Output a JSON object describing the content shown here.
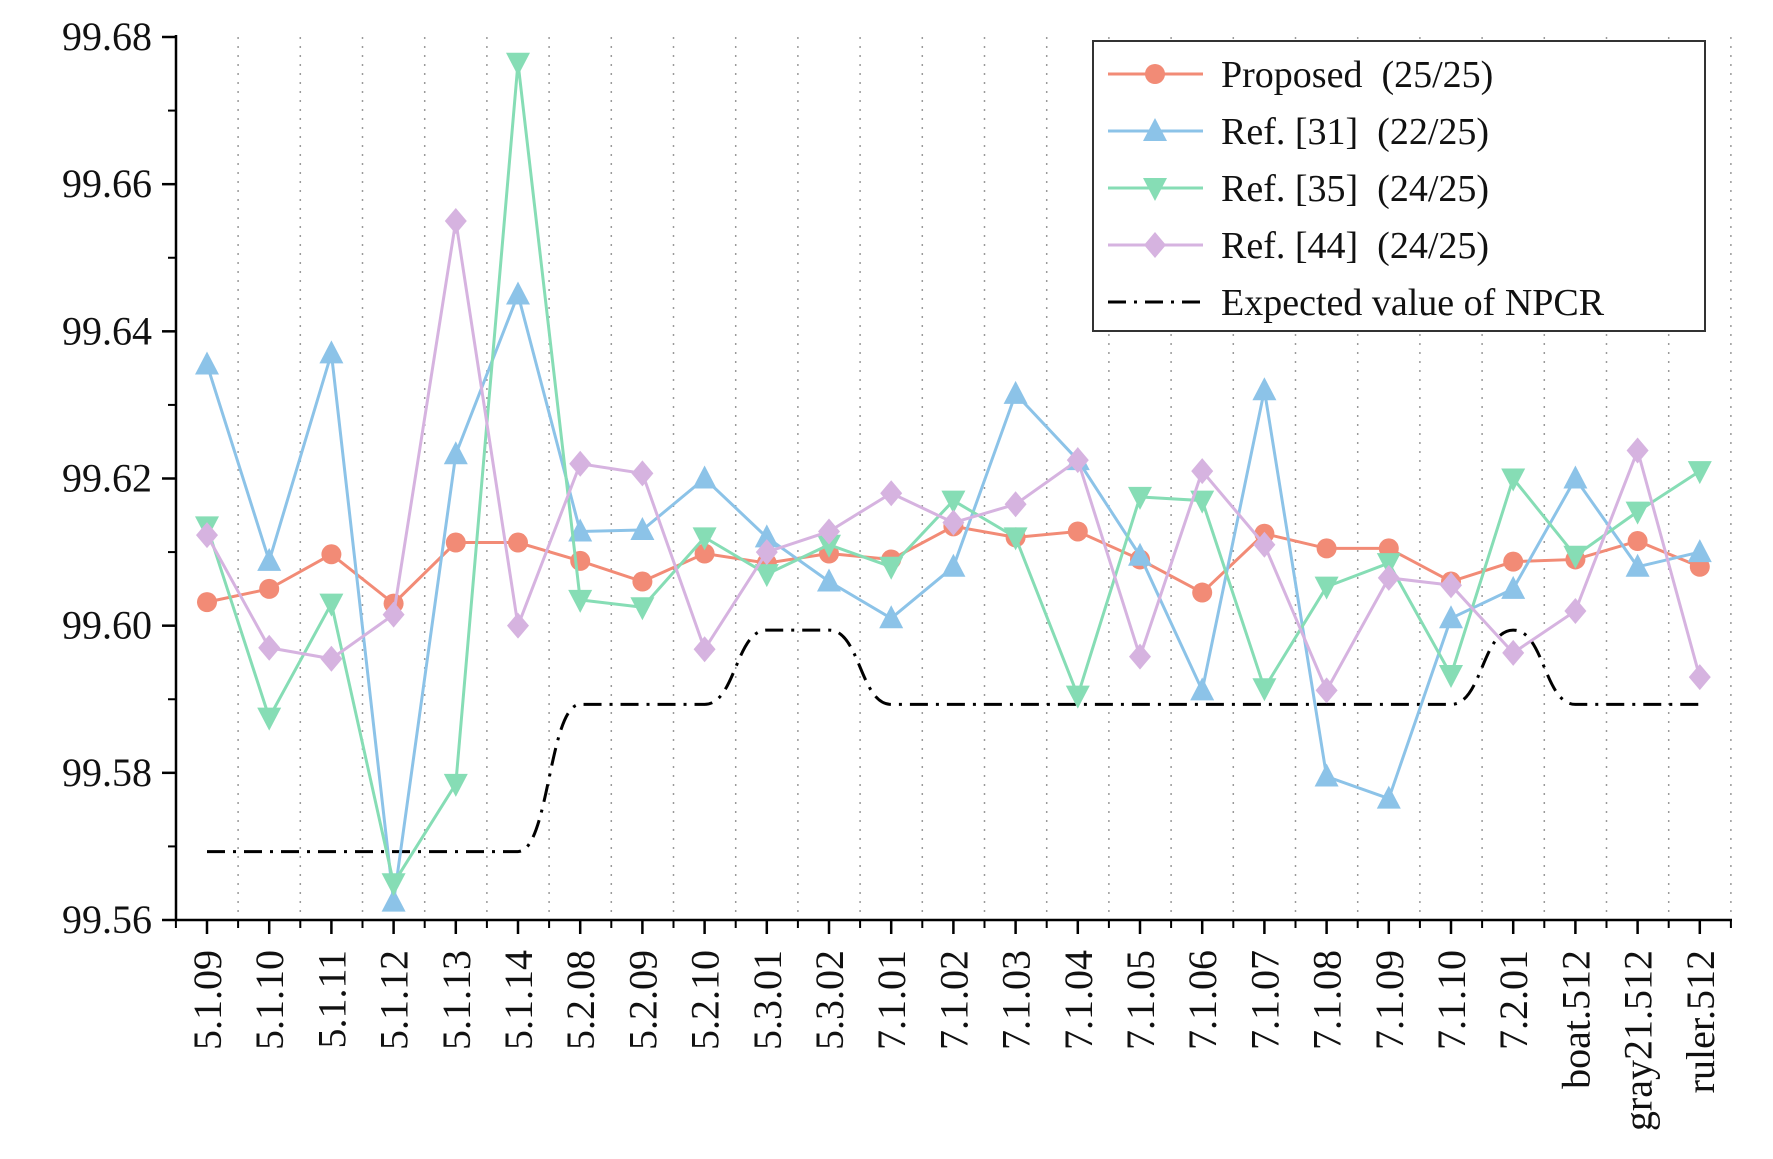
{
  "chart_data": {
    "type": "line",
    "title": "",
    "xlabel": "",
    "ylabel": "",
    "ylim": [
      99.56,
      99.68
    ],
    "yticks": [
      "99.56",
      "99.58",
      "99.60",
      "99.62",
      "99.64",
      "99.66",
      "99.68"
    ],
    "grid": "vertical dotted",
    "legend_position": "top-right",
    "categories": [
      "5.1.09",
      "5.1.10",
      "5.1.11",
      "5.1.12",
      "5.1.13",
      "5.1.14",
      "5.2.08",
      "5.2.09",
      "5.2.10",
      "5.3.01",
      "5.3.02",
      "7.1.01",
      "7.1.02",
      "7.1.03",
      "7.1.04",
      "7.1.05",
      "7.1.06",
      "7.1.07",
      "7.1.08",
      "7.1.09",
      "7.1.10",
      "7.2.01",
      "boat.512",
      "gray21.512",
      "ruler.512"
    ],
    "series": [
      {
        "name": "Proposed  (25/25)",
        "color": "#f28b76",
        "marker": "circle",
        "values": [
          99.6032,
          99.605,
          99.6097,
          99.603,
          99.6113,
          99.6113,
          99.6088,
          99.606,
          99.6098,
          99.6085,
          99.6098,
          99.609,
          99.6135,
          99.612,
          99.6128,
          99.609,
          99.6045,
          99.6125,
          99.6105,
          99.6105,
          99.606,
          99.6087,
          99.609,
          99.6115,
          99.608
        ]
      },
      {
        "name": "Ref. [31]  (22/25)",
        "color": "#8cc3e8",
        "marker": "triangle-up",
        "values": [
          99.6355,
          99.6088,
          99.637,
          99.5625,
          99.6233,
          99.645,
          99.6128,
          99.613,
          99.62,
          99.612,
          99.606,
          99.601,
          99.608,
          99.6315,
          99.6225,
          99.6095,
          99.5912,
          99.632,
          99.5795,
          99.5765,
          99.601,
          99.605,
          99.62,
          99.608,
          99.61
        ]
      },
      {
        "name": "Ref. [35]  (24/25)",
        "color": "#86ddb5",
        "marker": "triangle-down",
        "values": [
          99.6135,
          99.5875,
          99.603,
          99.565,
          99.5785,
          99.6765,
          99.6035,
          99.6025,
          99.612,
          99.607,
          99.611,
          99.608,
          99.617,
          99.612,
          99.5905,
          99.6175,
          99.617,
          99.5915,
          99.6053,
          99.6085,
          99.5933,
          99.62,
          99.6095,
          99.6155,
          99.621
        ]
      },
      {
        "name": "Ref. [44]  (24/25)",
        "color": "#d6b3e0",
        "marker": "diamond",
        "values": [
          99.6123,
          99.597,
          99.5955,
          99.6015,
          99.655,
          99.6,
          99.622,
          99.6207,
          99.5968,
          99.61,
          99.6128,
          99.618,
          99.614,
          99.6165,
          99.6225,
          99.5958,
          99.621,
          99.611,
          99.5912,
          99.6065,
          99.6055,
          99.5963,
          99.602,
          99.6238,
          99.593
        ]
      },
      {
        "name": "Expected value of NPCR",
        "color": "#000000",
        "marker": "none",
        "dash": "dash-dot",
        "values": [
          99.5693,
          99.5693,
          99.5693,
          99.5693,
          99.5693,
          99.5693,
          99.5893,
          99.5893,
          99.5893,
          99.5994,
          99.5994,
          99.5893,
          99.5893,
          99.5893,
          99.5893,
          99.5893,
          99.5893,
          99.5893,
          99.5893,
          99.5893,
          99.5893,
          99.5994,
          99.5893,
          99.5893,
          99.5893
        ]
      }
    ]
  }
}
